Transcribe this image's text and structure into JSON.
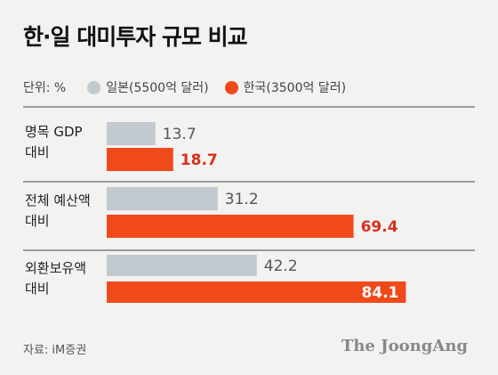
{
  "title": "한·일 대미투자 규모 비교",
  "legend": {
    "unit": "단위: %",
    "items": [
      {
        "label": "일본(5500억 달러)",
        "color": "#c2cacf"
      },
      {
        "label": "한국(3500억 달러)",
        "color": "#f04a1b"
      }
    ]
  },
  "source": "자료: iM증권",
  "brand": "The JoongAng",
  "chart_data": {
    "type": "bar",
    "orientation": "horizontal",
    "categories": [
      [
        "명목 GDP",
        "대비"
      ],
      [
        "전체 예산액",
        "대비"
      ],
      [
        "외환보유액",
        "대비"
      ]
    ],
    "series": [
      {
        "name": "일본(5500억 달러)",
        "values": [
          13.7,
          31.2,
          42.2
        ],
        "labels": [
          "13.7",
          "31.2",
          "42.2"
        ],
        "color": "#c2cacf",
        "label_color": "#555555"
      },
      {
        "name": "한국(3500억 달러)",
        "values": [
          18.7,
          69.4,
          84.1
        ],
        "labels": [
          "18.7",
          "69.4",
          "84.1"
        ],
        "color": "#f04a1b",
        "label_color": "#d9301c"
      }
    ],
    "xlim": [
      0,
      100
    ],
    "grid": false,
    "legend_position": "top-left"
  }
}
